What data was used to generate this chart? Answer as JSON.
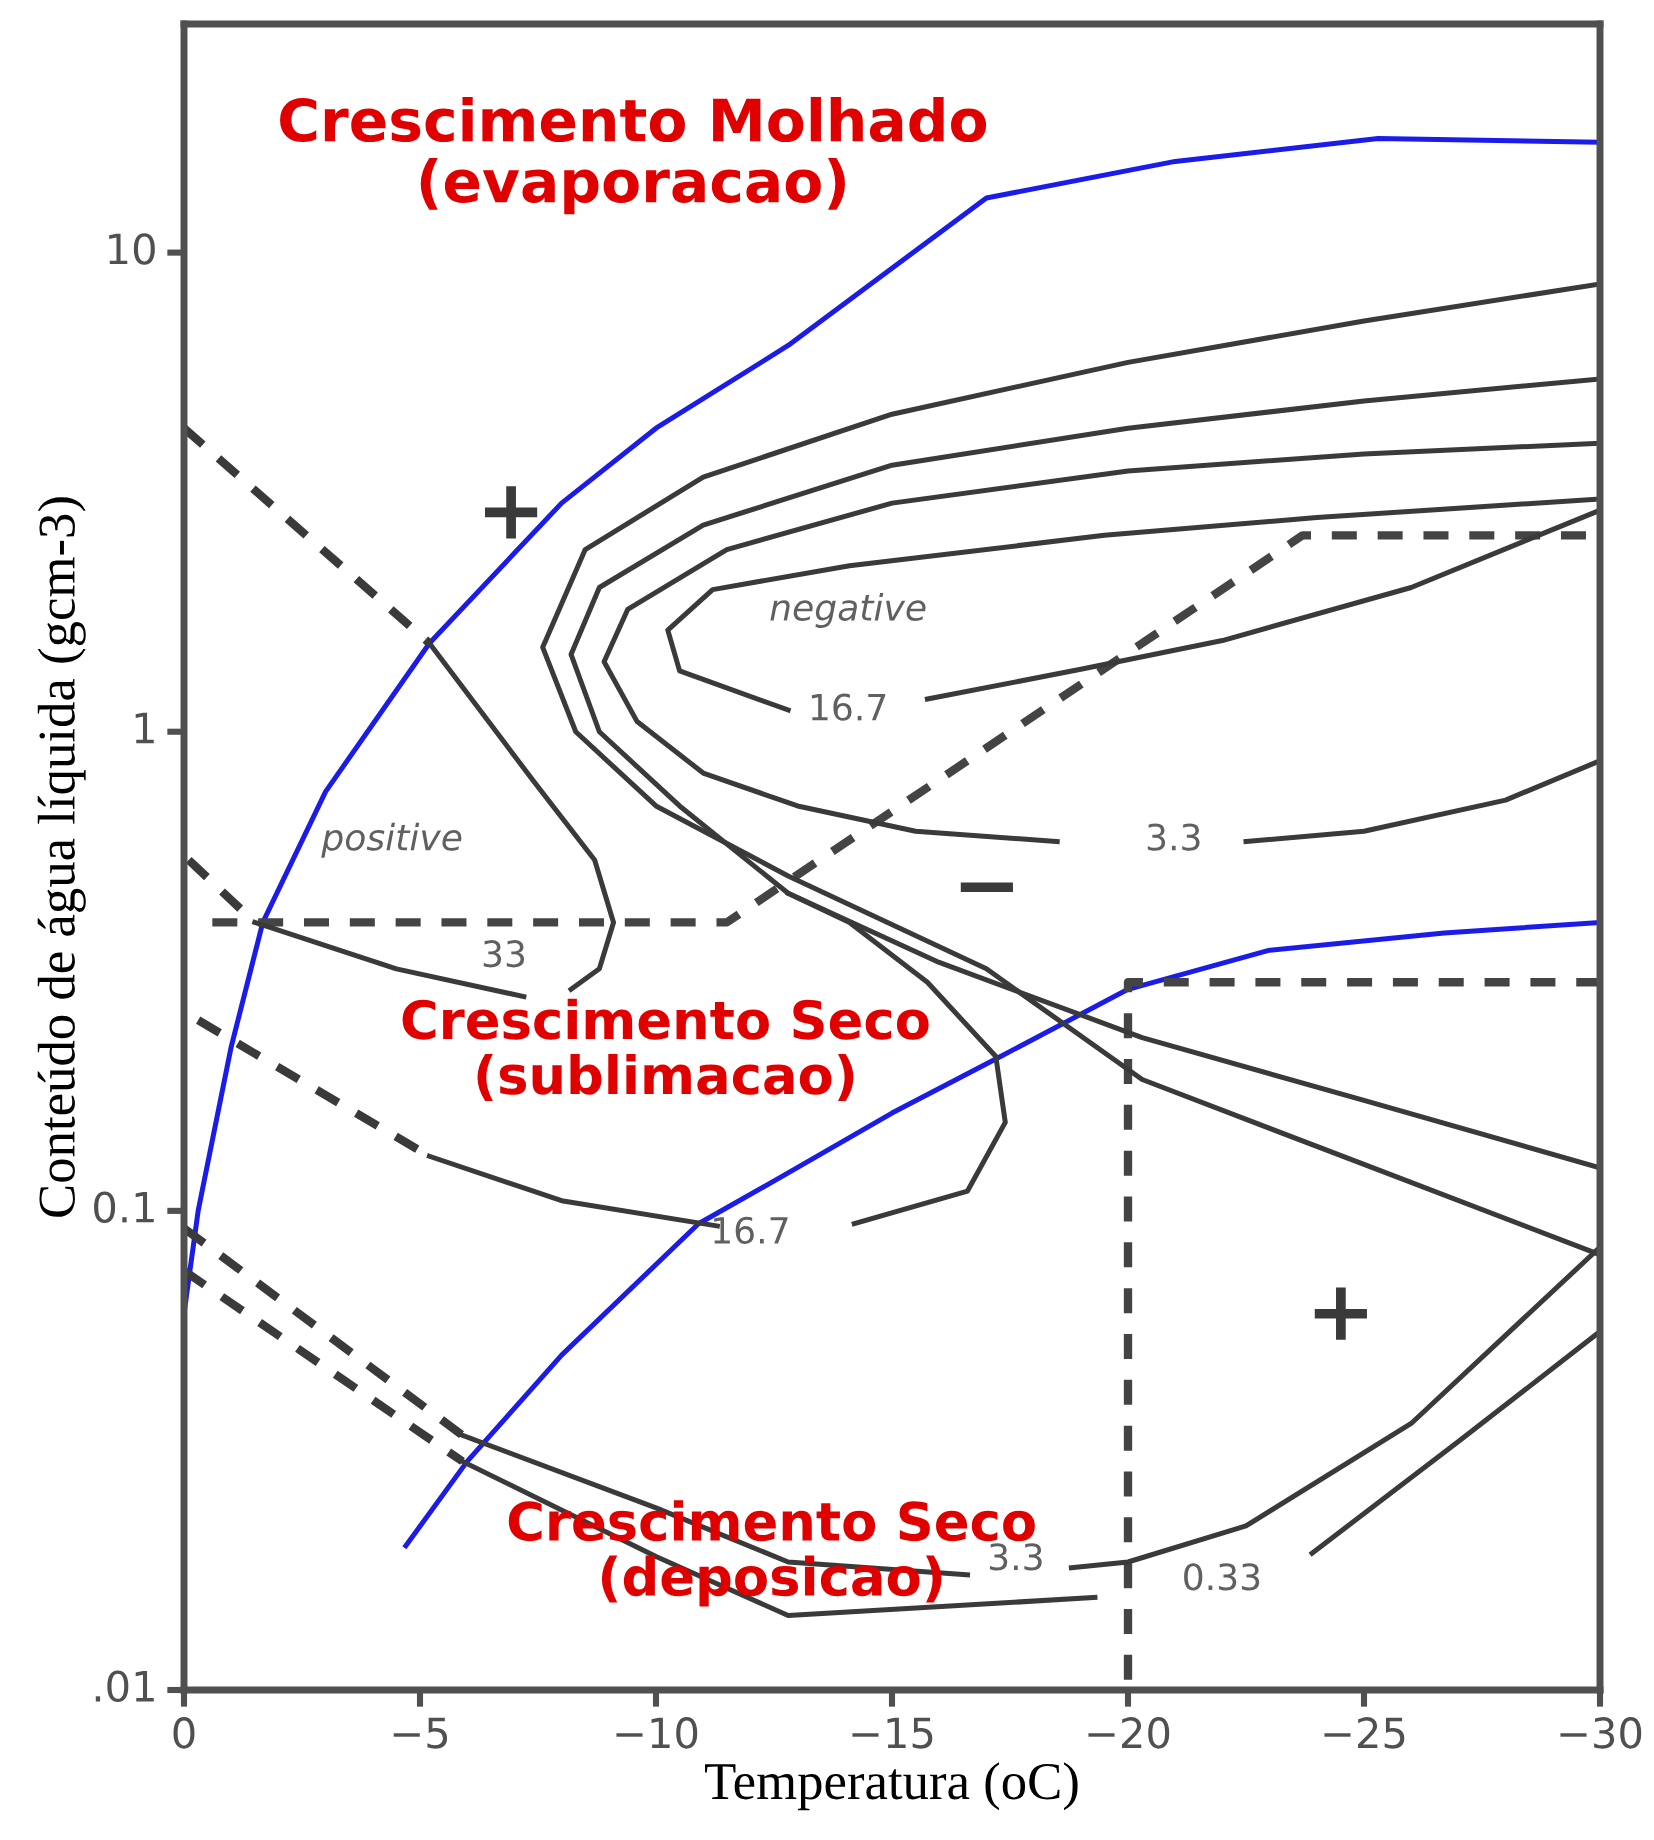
{
  "chart_data": {
    "type": "line",
    "xlabel": "Temperatura (oC)",
    "ylabel": "Conteúdo de água líquida (gcm-3)",
    "xlim": [
      0,
      -30
    ],
    "xticks": [
      0,
      -5,
      -10,
      -15,
      -20,
      -25,
      -30
    ],
    "ylim": [
      0.01,
      30
    ],
    "yticks": [
      {
        "value": 0.01,
        "label": ".01"
      },
      0.1,
      1,
      10
    ],
    "log": true,
    "grid": false,
    "legend": false,
    "marker": "none",
    "series": [
      {
        "color": "#1c1ce8",
        "line_style": "solid",
        "x": [
          0,
          -0.3,
          -1,
          -1.67,
          -3,
          -5.2,
          -8,
          -10,
          -12.8,
          -17,
          -21,
          -25.3,
          -30
        ],
        "values": [
          0.061,
          0.1,
          0.22,
          0.4,
          0.75,
          1.53,
          3,
          4.3,
          6.4,
          13,
          15.5,
          17.3,
          17
        ]
      },
      {
        "color": "#1c1ce8",
        "line_style": "solid",
        "x": [
          -4.7,
          -6,
          -8,
          -10.9,
          -12.8,
          -15,
          -17.3,
          -20,
          -23,
          -26.7,
          -30
        ],
        "values": [
          0.02,
          0.03,
          0.05,
          0.094,
          0.12,
          0.16,
          0.21,
          0.29,
          0.35,
          0.38,
          0.4
        ]
      },
      {
        "color": "#444444",
        "line_style": "dashed",
        "x": [
          -0.6,
          -11.5,
          -23.7,
          -30
        ],
        "values": [
          0.4,
          0.4,
          2.57,
          2.57
        ]
      },
      {
        "color": "#444444",
        "line_style": "dashed",
        "x": [
          -20,
          -20,
          -30
        ],
        "values": [
          0.0105,
          0.3,
          0.3
        ]
      },
      {
        "color": "#3a3a3a",
        "line_style": "dashed",
        "x": [
          0,
          -5.2
        ],
        "values": [
          4.3,
          1.53
        ]
      },
      {
        "color": "#3a3a3a",
        "line_style": "solid",
        "x": [
          -5.2,
          -7.4,
          -8.7,
          -9.1,
          -8.8,
          -8.2
        ],
        "values": [
          1.53,
          0.79,
          0.54,
          0.4,
          0.32,
          0.29
        ]
      },
      {
        "color": "#3a3a3a",
        "line_style": "dashed",
        "x": [
          -0.1,
          -1.5
        ],
        "values": [
          0.54,
          0.4
        ]
      },
      {
        "color": "#3a3a3a",
        "line_style": "solid",
        "x": [
          -1.5,
          -4.5,
          -7.2
        ],
        "values": [
          0.4,
          0.32,
          0.28
        ]
      },
      {
        "color": "#3a3a3a",
        "line_style": "dashed",
        "x": [
          -0.3,
          -5.2
        ],
        "values": [
          0.25,
          0.13
        ]
      },
      {
        "color": "#3a3a3a",
        "line_style": "solid",
        "x": [
          -5.2,
          -8,
          -11.3
        ],
        "values": [
          0.13,
          0.105,
          0.093
        ]
      },
      {
        "color": "#3a3a3a",
        "line_style": "solid",
        "x": [
          -14.2,
          -16.6,
          -17.4,
          -17.2,
          -15.75,
          -14.1,
          -12.8
        ],
        "values": [
          0.094,
          0.11,
          0.153,
          0.21,
          0.3,
          0.4,
          0.46
        ]
      },
      {
        "color": "#3a3a3a",
        "line_style": "solid",
        "x": [
          -30,
          -25,
          -20,
          -15,
          -11,
          -8.5,
          -7.6,
          -8.3,
          -10,
          -12.8,
          -17,
          -20.3,
          -25,
          -30
        ],
        "values": [
          8.6,
          7.2,
          5.9,
          4.6,
          3.4,
          2.4,
          1.5,
          1.0,
          0.7,
          0.5,
          0.32,
          0.188,
          0.125,
          0.081
        ]
      },
      {
        "color": "#3a3a3a",
        "line_style": "solid",
        "x": [
          -30,
          -25,
          -20,
          -15,
          -11,
          -8.8,
          -8.2,
          -8.8,
          -10.5,
          -12.8,
          -16,
          -20.3,
          -25,
          -30
        ],
        "values": [
          5.45,
          4.9,
          4.3,
          3.6,
          2.7,
          2.0,
          1.45,
          1.0,
          0.7,
          0.46,
          0.33,
          0.23,
          0.17,
          0.123
        ]
      },
      {
        "color": "#3a3a3a",
        "line_style": "solid",
        "x": [
          -30,
          -25,
          -20,
          -15,
          -11.5,
          -9.4,
          -8.9,
          -9.6,
          -11,
          -13,
          -15.5,
          -18.5
        ],
        "values": [
          4.0,
          3.8,
          3.5,
          3.0,
          2.4,
          1.8,
          1.4,
          1.05,
          0.82,
          0.7,
          0.62,
          0.59
        ]
      },
      {
        "color": "#3a3a3a",
        "line_style": "solid",
        "x": [
          -22.5,
          -25,
          -28,
          -30
        ],
        "values": [
          0.59,
          0.62,
          0.72,
          0.87
        ]
      },
      {
        "color": "#3a3a3a",
        "line_style": "solid",
        "x": [
          -12.8,
          -10.5,
          -10.25,
          -11.2,
          -14.1,
          -19.5,
          -24,
          -30
        ],
        "values": [
          1.11,
          1.34,
          1.63,
          1.98,
          2.22,
          2.57,
          2.8,
          3.06
        ]
      },
      {
        "color": "#3a3a3a",
        "line_style": "solid",
        "x": [
          -15.75,
          -19,
          -22,
          -26,
          -30
        ],
        "values": [
          1.17,
          1.35,
          1.55,
          2.0,
          2.9
        ]
      },
      {
        "color": "#3a3a3a",
        "line_style": "dashed",
        "x": [
          0,
          -5.9
        ],
        "values": [
          0.092,
          0.034
        ]
      },
      {
        "color": "#3a3a3a",
        "line_style": "solid",
        "x": [
          -5.9,
          -10,
          -12.8,
          -16.6
        ],
        "values": [
          0.034,
          0.024,
          0.0185,
          0.0174
        ]
      },
      {
        "color": "#3a3a3a",
        "line_style": "solid",
        "x": [
          -18.8,
          -20,
          -22.5,
          -26,
          -30
        ],
        "values": [
          0.018,
          0.0185,
          0.022,
          0.036,
          0.084
        ]
      },
      {
        "color": "#3a3a3a",
        "line_style": "dashed",
        "x": [
          0,
          -5.9
        ],
        "values": [
          0.075,
          0.03
        ]
      },
      {
        "color": "#3a3a3a",
        "line_style": "solid",
        "x": [
          -5.9,
          -10,
          -12.8,
          -19.3
        ],
        "values": [
          0.03,
          0.019,
          0.0143,
          0.0156
        ]
      },
      {
        "color": "#3a3a3a",
        "line_style": "solid",
        "x": [
          -23.9,
          -27,
          -30
        ],
        "values": [
          0.0193,
          0.033,
          0.056
        ]
      }
    ],
    "annotations": [
      "Crescimento Molhado\n(evaporacao)",
      "Crescimento Seco\n(sublimacao)",
      "Crescimento Seco\n(deposicao)",
      "+",
      "+",
      "−",
      "positive",
      "negative",
      "16.7",
      "3.3",
      "33",
      "16.7",
      "3.3",
      "0.33"
    ]
  }
}
